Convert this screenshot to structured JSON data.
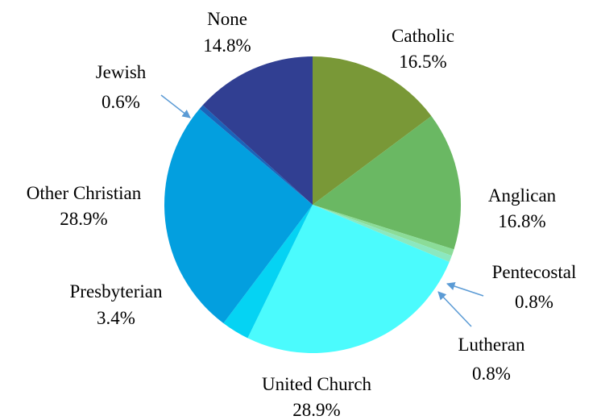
{
  "chart_data": {
    "type": "pie",
    "title": "",
    "start_angle_deg": 0,
    "direction": "clockwise",
    "slices": [
      {
        "label": "Catholic",
        "value": 16.5,
        "value_label": "16.5%",
        "color": "#799837"
      },
      {
        "label": "Anglican",
        "value": 16.8,
        "value_label": "16.8%",
        "color": "#6AB863"
      },
      {
        "label": "Pentecostal",
        "value": 0.8,
        "value_label": "0.8%",
        "color": "#8BDC98"
      },
      {
        "label": "Lutheran",
        "value": 0.8,
        "value_label": "0.8%",
        "color": "#8BE8C0"
      },
      {
        "label": "United Church",
        "value": 28.9,
        "value_label": "28.9%",
        "color": "#4BFBFD"
      },
      {
        "label": "Presbyterian",
        "value": 3.4,
        "value_label": "3.4%",
        "color": "#05D3F3"
      },
      {
        "label": "Other Christian",
        "value": 28.9,
        "value_label": "28.9%",
        "color": "#039FDF"
      },
      {
        "label": "Jewish",
        "value": 0.6,
        "value_label": "0.6%",
        "color": "#1A64BA"
      },
      {
        "label": "None",
        "value": 14.8,
        "value_label": "14.8%",
        "color": "#313F92"
      }
    ],
    "leader_line_color": "#5B9BD5"
  }
}
